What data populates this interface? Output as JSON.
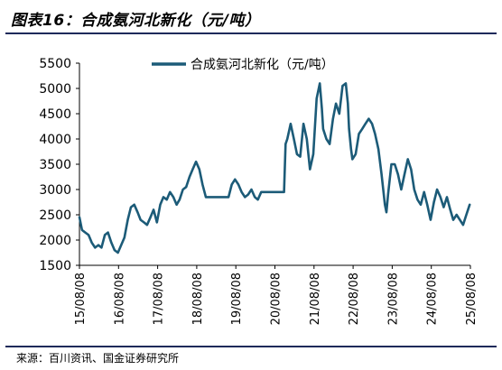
{
  "figure": {
    "title": "图表16：合成氨河北新化（元/吨）",
    "source": "来源：百川资讯、国金证券研究所"
  },
  "chart_data": {
    "type": "line",
    "title": "",
    "xlabel": "",
    "ylabel": "",
    "ylim": [
      1500,
      5500
    ],
    "yticks": [
      1500,
      2000,
      2500,
      3000,
      3500,
      4000,
      4500,
      5000,
      5500
    ],
    "xticks": [
      "15/08/08",
      "16/08/08",
      "17/08/08",
      "18/08/08",
      "19/08/08",
      "20/08/08",
      "21/08/08",
      "22/08/08",
      "23/08/08",
      "24/08/08",
      "25/08/08"
    ],
    "xlim": [
      "2015-08-08",
      "2025-08-08"
    ],
    "grid": false,
    "legend": "top-center",
    "series": [
      {
        "name": "合成氨河北新化（元/吨）",
        "color": "#1c5b78",
        "points": [
          [
            "2015-08-08",
            2450
          ],
          [
            "2015-09-01",
            2200
          ],
          [
            "2015-10-01",
            2150
          ],
          [
            "2015-11-01",
            2100
          ],
          [
            "2015-12-01",
            1950
          ],
          [
            "2016-01-01",
            1850
          ],
          [
            "2016-02-01",
            1900
          ],
          [
            "2016-03-01",
            1850
          ],
          [
            "2016-04-01",
            2100
          ],
          [
            "2016-05-01",
            2150
          ],
          [
            "2016-06-01",
            1950
          ],
          [
            "2016-07-01",
            1800
          ],
          [
            "2016-08-01",
            1750
          ],
          [
            "2016-09-01",
            1900
          ],
          [
            "2016-10-01",
            2050
          ],
          [
            "2016-11-01",
            2400
          ],
          [
            "2016-12-01",
            2650
          ],
          [
            "2017-01-01",
            2700
          ],
          [
            "2017-02-01",
            2550
          ],
          [
            "2017-03-01",
            2400
          ],
          [
            "2017-04-01",
            2350
          ],
          [
            "2017-05-01",
            2300
          ],
          [
            "2017-06-01",
            2450
          ],
          [
            "2017-07-01",
            2600
          ],
          [
            "2017-08-01",
            2350
          ],
          [
            "2017-09-01",
            2700
          ],
          [
            "2017-10-01",
            2850
          ],
          [
            "2017-11-01",
            2800
          ],
          [
            "2017-12-01",
            2950
          ],
          [
            "2018-01-01",
            2850
          ],
          [
            "2018-02-01",
            2700
          ],
          [
            "2018-03-01",
            2800
          ],
          [
            "2018-04-01",
            3000
          ],
          [
            "2018-05-01",
            3050
          ],
          [
            "2018-06-01",
            3250
          ],
          [
            "2018-07-01",
            3400
          ],
          [
            "2018-08-01",
            3550
          ],
          [
            "2018-09-01",
            3400
          ],
          [
            "2018-10-01",
            3100
          ],
          [
            "2018-11-01",
            2850
          ],
          [
            "2018-12-01",
            2850
          ],
          [
            "2019-03-01",
            2850
          ],
          [
            "2019-06-01",
            2850
          ],
          [
            "2019-07-01",
            3100
          ],
          [
            "2019-08-01",
            3200
          ],
          [
            "2019-09-01",
            3100
          ],
          [
            "2019-10-01",
            2950
          ],
          [
            "2019-11-01",
            2850
          ],
          [
            "2019-12-01",
            2900
          ],
          [
            "2020-01-01",
            3000
          ],
          [
            "2020-02-01",
            2850
          ],
          [
            "2020-03-01",
            2800
          ],
          [
            "2020-04-01",
            2950
          ],
          [
            "2020-07-01",
            2950
          ],
          [
            "2020-10-01",
            2950
          ],
          [
            "2020-11-01",
            2950
          ],
          [
            "2020-11-15",
            3900
          ],
          [
            "2020-12-01",
            4000
          ],
          [
            "2021-01-01",
            4300
          ],
          [
            "2021-02-01",
            4000
          ],
          [
            "2021-03-01",
            3700
          ],
          [
            "2021-04-01",
            3650
          ],
          [
            "2021-05-01",
            4300
          ],
          [
            "2021-06-01",
            4000
          ],
          [
            "2021-07-01",
            3400
          ],
          [
            "2021-08-01",
            3700
          ],
          [
            "2021-09-01",
            4800
          ],
          [
            "2021-10-01",
            5100
          ],
          [
            "2021-10-20",
            4600
          ],
          [
            "2021-11-01",
            4200
          ],
          [
            "2021-12-01",
            4000
          ],
          [
            "2022-01-01",
            3900
          ],
          [
            "2022-02-01",
            4400
          ],
          [
            "2022-03-01",
            4700
          ],
          [
            "2022-04-01",
            4500
          ],
          [
            "2022-05-01",
            5050
          ],
          [
            "2022-06-01",
            5100
          ],
          [
            "2022-06-20",
            4700
          ],
          [
            "2022-07-01",
            4200
          ],
          [
            "2022-07-20",
            3800
          ],
          [
            "2022-08-01",
            3600
          ],
          [
            "2022-09-01",
            3700
          ],
          [
            "2022-10-01",
            4100
          ],
          [
            "2022-11-01",
            4200
          ],
          [
            "2022-12-01",
            4300
          ],
          [
            "2023-01-01",
            4400
          ],
          [
            "2023-02-01",
            4300
          ],
          [
            "2023-03-01",
            4100
          ],
          [
            "2023-04-01",
            3800
          ],
          [
            "2023-05-01",
            3300
          ],
          [
            "2023-06-01",
            2700
          ],
          [
            "2023-06-15",
            2550
          ],
          [
            "2023-07-01",
            2900
          ],
          [
            "2023-08-01",
            3500
          ],
          [
            "2023-09-01",
            3500
          ],
          [
            "2023-10-01",
            3300
          ],
          [
            "2023-11-01",
            3000
          ],
          [
            "2023-12-01",
            3300
          ],
          [
            "2024-01-01",
            3600
          ],
          [
            "2024-02-01",
            3400
          ],
          [
            "2024-03-01",
            3000
          ],
          [
            "2024-04-01",
            2800
          ],
          [
            "2024-05-01",
            2700
          ],
          [
            "2024-06-01",
            2950
          ],
          [
            "2024-07-01",
            2700
          ],
          [
            "2024-08-01",
            2400
          ],
          [
            "2024-09-01",
            2750
          ],
          [
            "2024-10-01",
            3000
          ],
          [
            "2024-11-01",
            2850
          ],
          [
            "2024-12-01",
            2650
          ],
          [
            "2025-01-01",
            2850
          ],
          [
            "2025-02-01",
            2600
          ],
          [
            "2025-03-01",
            2400
          ],
          [
            "2025-04-01",
            2500
          ],
          [
            "2025-05-01",
            2400
          ],
          [
            "2025-06-01",
            2300
          ],
          [
            "2025-07-01",
            2500
          ],
          [
            "2025-08-01",
            2700
          ]
        ]
      }
    ]
  }
}
